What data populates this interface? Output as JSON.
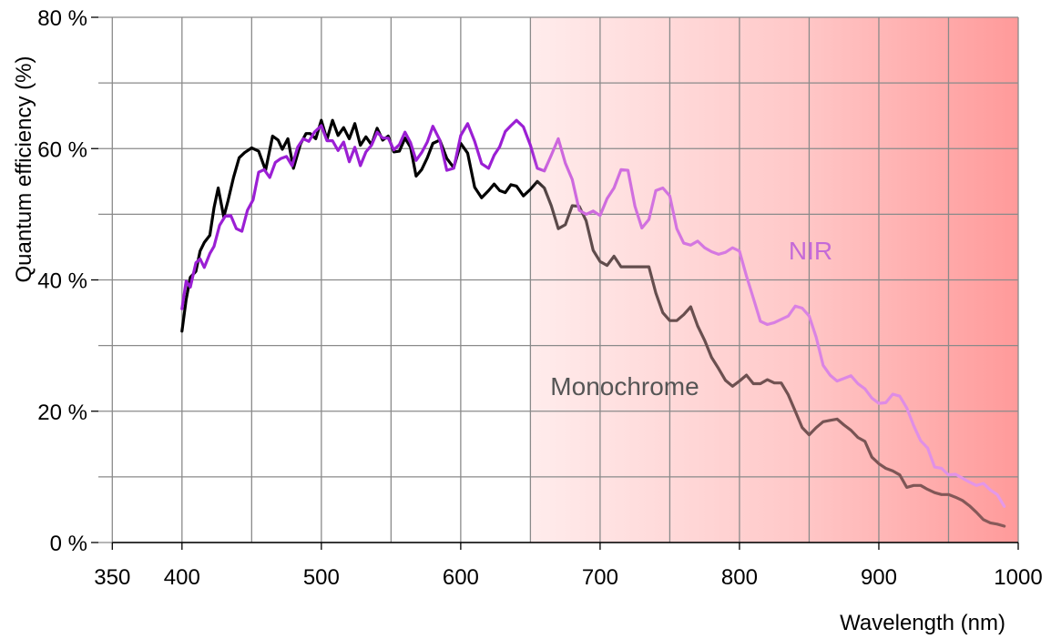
{
  "chart_data": {
    "type": "line",
    "xlabel": "Wavelength (nm)",
    "ylabel": "Quantum efficiency (%)",
    "xlim": [
      340,
      1000
    ],
    "ylim": [
      0,
      80
    ],
    "x_ticks": [
      350,
      400,
      500,
      600,
      700,
      800,
      900,
      1000
    ],
    "x_tick_labels": [
      "350",
      "400",
      "500",
      "600",
      "700",
      "800",
      "900",
      "1000"
    ],
    "y_ticks": [
      0,
      20,
      40,
      60,
      80
    ],
    "y_tick_labels": [
      "0 %",
      "20 %",
      "40 %",
      "60 %",
      "80 %"
    ],
    "grid": true,
    "highlight_region": {
      "from": 650,
      "to": 1000,
      "color": "#ff9a9a"
    },
    "series": [
      {
        "name": "Monochrome",
        "color": "#000000",
        "label_text": "Monochrome",
        "x": [
          400,
          403,
          406,
          410,
          413,
          416,
          420,
          423,
          426,
          430,
          433,
          437,
          441,
          445,
          450,
          455,
          460,
          465,
          469,
          472,
          476,
          480,
          485,
          489,
          492,
          496,
          500,
          504,
          508,
          512,
          516,
          520,
          524,
          528,
          532,
          536,
          540,
          544,
          548,
          552,
          556,
          560,
          564,
          568,
          572,
          576,
          580,
          585,
          590,
          595,
          600,
          605,
          610,
          615,
          620,
          624,
          628,
          632,
          636,
          640,
          645,
          650,
          655,
          660,
          665,
          670,
          675,
          680,
          685,
          690,
          695,
          700,
          705,
          710,
          715,
          720,
          725,
          730,
          735,
          740,
          745,
          750,
          755,
          760,
          765,
          770,
          775,
          780,
          785,
          790,
          795,
          800,
          805,
          810,
          815,
          820,
          825,
          830,
          835,
          840,
          845,
          850,
          855,
          860,
          865,
          870,
          875,
          880,
          885,
          890,
          895,
          900,
          905,
          910,
          915,
          920,
          925,
          930,
          935,
          940,
          945,
          950,
          955,
          960,
          965,
          970,
          975,
          980,
          985,
          990
        ],
        "y": [
          32.2,
          37,
          40.4,
          41.3,
          44.4,
          45.7,
          46.8,
          51,
          54,
          49.6,
          52,
          55.6,
          58.6,
          59.4,
          60.1,
          59.6,
          56.7,
          61.9,
          61.3,
          59.9,
          61.5,
          57,
          60.7,
          62.3,
          62.3,
          61.5,
          64.3,
          61.4,
          64.3,
          62,
          63.2,
          61.5,
          63.8,
          60.5,
          61.8,
          60.6,
          63.1,
          61.3,
          61.9,
          59.5,
          59.6,
          61.6,
          60.2,
          55.8,
          56.8,
          58.6,
          60.8,
          61.3,
          58.5,
          57.1,
          60.8,
          59.3,
          54.1,
          52.5,
          53.6,
          54.6,
          53.6,
          53.3,
          54.5,
          54.3,
          52.8,
          53.8,
          55,
          54,
          51.3,
          47.8,
          48.4,
          51.3,
          51.2,
          49,
          44.5,
          42.8,
          42.2,
          43.6,
          42,
          42,
          42,
          42,
          42,
          38,
          35,
          33.8,
          33.8,
          34.7,
          35.9,
          33,
          30.8,
          28.2,
          26.5,
          24.7,
          23.8,
          24.6,
          25.5,
          24.2,
          24.2,
          24.8,
          24.3,
          24.3,
          22.5,
          20,
          17.5,
          16.4,
          17.5,
          18.4,
          18.6,
          18.8,
          17.9,
          17.1,
          16,
          15.4,
          13,
          12,
          11.3,
          10.9,
          10.3,
          8.4,
          8.7,
          8.7,
          8.1,
          7.6,
          7.3,
          7.3,
          6.9,
          6.4,
          5.6,
          4.6,
          3.5,
          3,
          2.8,
          2.5
        ]
      },
      {
        "name": "NIR",
        "color": "#9b1fd4",
        "label_text": "NIR",
        "x": [
          400,
          403,
          406,
          410,
          413,
          416,
          420,
          423,
          427,
          431,
          435,
          439,
          443,
          447,
          451,
          455,
          459,
          463,
          467,
          471,
          475,
          479,
          483,
          487,
          491,
          495,
          500,
          504,
          508,
          512,
          516,
          520,
          524,
          528,
          532,
          536,
          540,
          544,
          548,
          552,
          556,
          560,
          564,
          568,
          572,
          576,
          580,
          585,
          590,
          595,
          600,
          605,
          610,
          615,
          620,
          624,
          628,
          632,
          636,
          640,
          645,
          650,
          655,
          660,
          665,
          670,
          675,
          680,
          685,
          690,
          695,
          700,
          705,
          710,
          715,
          720,
          725,
          730,
          735,
          740,
          745,
          750,
          755,
          760,
          765,
          770,
          775,
          780,
          785,
          790,
          795,
          800,
          805,
          810,
          815,
          820,
          825,
          830,
          835,
          840,
          845,
          850,
          855,
          860,
          865,
          870,
          875,
          880,
          885,
          890,
          895,
          900,
          905,
          910,
          915,
          920,
          925,
          930,
          935,
          940,
          945,
          950,
          955,
          960,
          965,
          970,
          975,
          980,
          985,
          990
        ],
        "y": [
          35.6,
          39.8,
          38.9,
          42.6,
          43.2,
          41.9,
          44,
          45.1,
          48.3,
          49.7,
          49.8,
          47.8,
          47.4,
          50.6,
          52.2,
          56.4,
          56.8,
          55.6,
          57.9,
          58.5,
          58.8,
          57.4,
          60.2,
          61.5,
          61.1,
          62.5,
          63.5,
          61.2,
          61.2,
          59.7,
          61,
          58,
          60.2,
          57.4,
          59.5,
          60.5,
          62.5,
          61.6,
          61.6,
          59.8,
          60.6,
          62.5,
          60.9,
          58.2,
          59.4,
          61,
          63.4,
          61.3,
          56.7,
          57,
          62,
          63.8,
          61.1,
          57.7,
          57,
          59,
          60.3,
          62.6,
          63.5,
          64.3,
          63.3,
          60.5,
          57,
          56.6,
          59,
          61.5,
          57.8,
          55.3,
          50.6,
          50,
          50.5,
          49.8,
          52.4,
          54,
          56.8,
          56.7,
          51.2,
          47.9,
          49.2,
          53.6,
          54,
          52.8,
          47.8,
          45.6,
          45.3,
          45.9,
          44.9,
          44.3,
          43.9,
          44.2,
          44.9,
          44.4,
          40.6,
          37.2,
          33.7,
          33.2,
          33.5,
          34,
          34.5,
          36,
          35.7,
          34.5,
          31.3,
          27,
          25.5,
          24.6,
          25,
          25.4,
          24.2,
          23.4,
          22,
          21.2,
          21.3,
          22.6,
          22.3,
          20.5,
          17.8,
          15.5,
          14.4,
          11.5,
          11.3,
          10.3,
          10.4,
          9.8,
          9.2,
          8.7,
          9,
          8,
          7.3,
          5.5
        ]
      }
    ]
  }
}
